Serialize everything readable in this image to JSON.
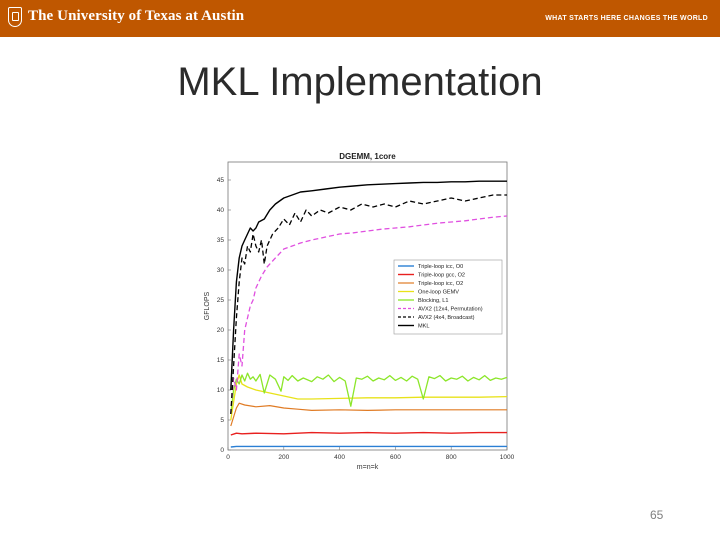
{
  "header": {
    "university": "The University of Texas at Austin",
    "slogan": "WHAT STARTS HERE CHANGES THE WORLD"
  },
  "slide": {
    "title": "MKL Implementation",
    "page_number": "65"
  },
  "colors": {
    "banner": "#bf5700"
  },
  "chart_data": {
    "type": "line",
    "title": "DGEMM, 1core",
    "xlabel": "m=n=k",
    "ylabel": "GFLOPS",
    "xlim": [
      0,
      1000
    ],
    "ylim": [
      0,
      48
    ],
    "xticks": [
      0,
      200,
      400,
      600,
      800,
      1000
    ],
    "yticks": [
      0,
      5,
      10,
      15,
      20,
      25,
      30,
      35,
      40,
      45
    ],
    "grid": false,
    "legend_position": "middle-right",
    "series": [
      {
        "name": "Triple-loop icc, O0",
        "color": "#2a7fd4",
        "dash": "",
        "width": 1.4,
        "x": [
          10,
          30,
          50,
          100,
          200,
          400,
          600,
          800,
          1000
        ],
        "y": [
          0.5,
          0.6,
          0.6,
          0.6,
          0.6,
          0.6,
          0.6,
          0.6,
          0.6
        ]
      },
      {
        "name": "Triple-loop gcc, O2",
        "color": "#e8201f",
        "dash": "",
        "width": 1.4,
        "x": [
          10,
          30,
          50,
          100,
          200,
          300,
          400,
          500,
          600,
          700,
          800,
          900,
          1000
        ],
        "y": [
          2.5,
          2.8,
          2.7,
          2.8,
          2.7,
          2.9,
          2.8,
          2.9,
          2.8,
          2.9,
          2.8,
          2.9,
          2.9
        ]
      },
      {
        "name": "Triple-loop icc, O2",
        "color": "#e07b24",
        "dash": "",
        "width": 1.2,
        "x": [
          10,
          20,
          30,
          40,
          60,
          100,
          150,
          200,
          250,
          300,
          400,
          500,
          600,
          700,
          800,
          900,
          1000
        ],
        "y": [
          4.0,
          5.5,
          7.0,
          7.8,
          7.5,
          7.2,
          7.4,
          7.0,
          6.8,
          6.6,
          6.7,
          6.6,
          6.7,
          6.7,
          6.7,
          6.7,
          6.7
        ]
      },
      {
        "name": "One-loop GEMV",
        "color": "#e8e21a",
        "dash": "",
        "width": 1.3,
        "x": [
          10,
          20,
          30,
          40,
          50,
          70,
          100,
          150,
          200,
          250,
          300,
          400,
          500,
          600,
          700,
          800,
          900,
          1000
        ],
        "y": [
          5,
          8,
          11,
          12.5,
          11,
          10.5,
          10,
          9.5,
          9,
          8.5,
          8.5,
          8.6,
          8.7,
          8.7,
          8.8,
          8.8,
          8.8,
          8.9
        ]
      },
      {
        "name": "Blocking, L1",
        "color": "#8ce62a",
        "dash": "",
        "width": 1.3,
        "x": [
          10,
          20,
          30,
          40,
          50,
          60,
          70,
          80,
          90,
          100,
          115,
          130,
          150,
          170,
          190,
          200,
          215,
          230,
          250,
          270,
          300,
          320,
          340,
          360,
          380,
          400,
          420,
          440,
          460,
          480,
          500,
          520,
          540,
          560,
          580,
          600,
          620,
          640,
          660,
          680,
          700,
          720,
          740,
          760,
          780,
          800,
          820,
          840,
          860,
          880,
          900,
          920,
          940,
          960,
          980,
          1000
        ],
        "y": [
          6,
          10,
          11.8,
          11,
          12.5,
          11.5,
          12.8,
          11.8,
          12.2,
          11.5,
          12.6,
          9.5,
          12.5,
          11.8,
          9.8,
          12.2,
          11.6,
          12.4,
          11.5,
          12.0,
          11.4,
          12.2,
          11.8,
          12.5,
          11.4,
          12.1,
          11.5,
          7.3,
          12.0,
          11.8,
          12.3,
          11.5,
          12.0,
          11.7,
          12.4,
          11.6,
          12.1,
          11.5,
          12.3,
          11.8,
          8.5,
          12.2,
          11.9,
          12.4,
          11.5,
          12.0,
          11.8,
          12.3,
          11.5,
          12.1,
          11.7,
          12.4,
          11.6,
          12.0,
          11.8,
          12.1
        ]
      },
      {
        "name": "AVX2 (12x4, Permutation)",
        "color": "#e050e0",
        "dash": "5,3",
        "width": 1.3,
        "x": [
          10,
          20,
          30,
          40,
          50,
          60,
          70,
          80,
          90,
          100,
          120,
          140,
          160,
          180,
          200,
          230,
          260,
          300,
          350,
          400,
          450,
          500,
          550,
          600,
          650,
          700,
          750,
          800,
          850,
          900,
          950,
          1000
        ],
        "y": [
          6,
          12,
          10,
          16,
          14,
          20,
          22,
          24,
          25,
          27,
          29,
          30.5,
          31.5,
          32.5,
          33.5,
          34,
          34.5,
          35,
          35.5,
          36,
          36.2,
          36.5,
          36.8,
          37,
          37.2,
          37.5,
          37.8,
          38,
          38.2,
          38.5,
          38.8,
          39
        ]
      },
      {
        "name": "AVX2 (4x4, Broadcast)",
        "color": "#000000",
        "dash": "5,3",
        "width": 1.3,
        "x": [
          10,
          20,
          30,
          40,
          50,
          60,
          70,
          80,
          90,
          100,
          110,
          120,
          130,
          140,
          160,
          180,
          200,
          220,
          240,
          260,
          280,
          300,
          330,
          360,
          400,
          440,
          480,
          520,
          560,
          600,
          650,
          700,
          750,
          800,
          850,
          900,
          950,
          1000
        ],
        "y": [
          6,
          14,
          22,
          28,
          32,
          31,
          34,
          33,
          36,
          34,
          33,
          35,
          31,
          34,
          36,
          37,
          38.5,
          37.5,
          39.5,
          38,
          40,
          39,
          40,
          39.5,
          40.5,
          40,
          41,
          40.5,
          41,
          40.5,
          41.5,
          41,
          41.5,
          42,
          41.5,
          42,
          42.5,
          42.5
        ]
      },
      {
        "name": "MKL",
        "color": "#000000",
        "dash": "",
        "width": 1.4,
        "x": [
          10,
          20,
          30,
          40,
          50,
          60,
          70,
          80,
          90,
          100,
          110,
          130,
          150,
          170,
          200,
          230,
          260,
          300,
          350,
          400,
          450,
          500,
          550,
          600,
          650,
          700,
          750,
          800,
          850,
          900,
          950,
          1000
        ],
        "y": [
          10,
          20,
          28,
          32,
          34,
          35,
          36,
          37,
          36.5,
          37,
          38,
          38.5,
          40,
          41,
          42,
          42.5,
          43,
          43.2,
          43.5,
          43.8,
          44,
          44.2,
          44.3,
          44.4,
          44.5,
          44.6,
          44.6,
          44.7,
          44.7,
          44.8,
          44.8,
          44.8
        ]
      }
    ]
  }
}
